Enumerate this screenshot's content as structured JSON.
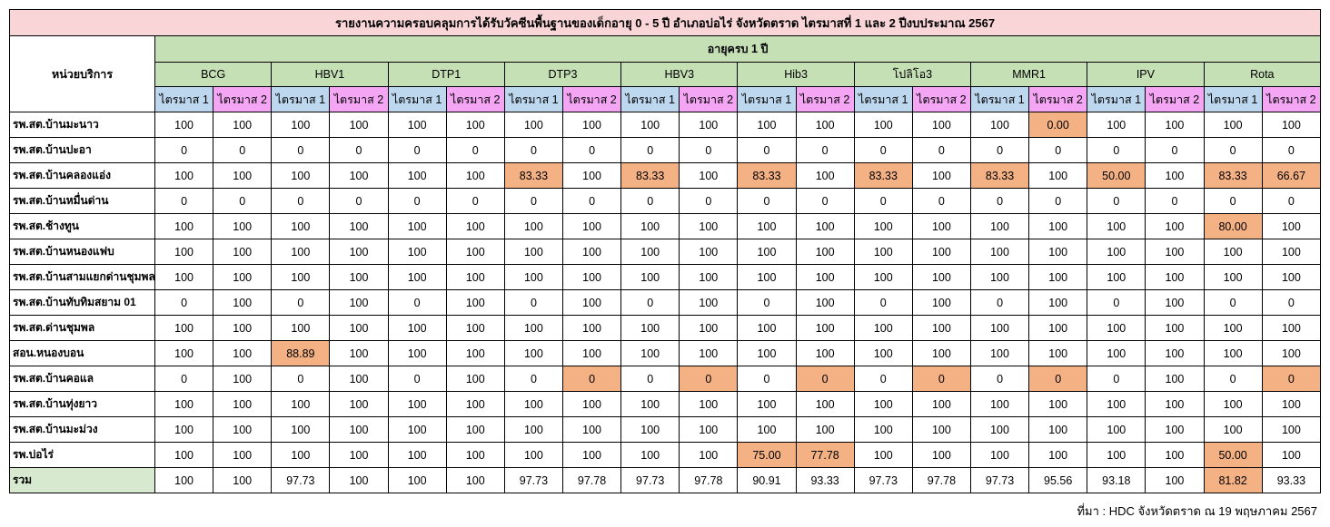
{
  "title": "รายงานความครอบคลุมการได้รับวัคซีนพื้นฐานของเด็กอายุ 0 - 5 ปี อำเภอบ่อไร่ จังหวัดตราด ไตรมาสที่ 1 และ 2 ปีงบประมาณ 2567",
  "unit_header": "หน่วยบริการ",
  "age_group": "อายุครบ 1 ปี",
  "vaccines": [
    "BCG",
    "HBV1",
    "DTP1",
    "DTP3",
    "HBV3",
    "Hib3",
    "โปลิโอ3",
    "MMR1",
    "IPV",
    "Rota"
  ],
  "quarter_labels": [
    "ไตรมาส 1",
    "ไตรมาส 2"
  ],
  "highlight_color": "#f4b183",
  "rows": [
    {
      "name": "รพ.สต.บ้านมะนาว",
      "values": [
        "100",
        "100",
        "100",
        "100",
        "100",
        "100",
        "100",
        "100",
        "100",
        "100",
        "100",
        "100",
        "100",
        "100",
        "100",
        "0.00",
        "100",
        "100",
        "100",
        "100"
      ],
      "hl": [
        15
      ]
    },
    {
      "name": "รพ.สต.บ้านปะอา",
      "values": [
        "0",
        "0",
        "0",
        "0",
        "0",
        "0",
        "0",
        "0",
        "0",
        "0",
        "0",
        "0",
        "0",
        "0",
        "0",
        "0",
        "0",
        "0",
        "0",
        "0"
      ],
      "hl": []
    },
    {
      "name": "รพ.สต.บ้านคลองแอ่ง",
      "values": [
        "100",
        "100",
        "100",
        "100",
        "100",
        "100",
        "83.33",
        "100",
        "83.33",
        "100",
        "83.33",
        "100",
        "83.33",
        "100",
        "83.33",
        "100",
        "50.00",
        "100",
        "83.33",
        "66.67"
      ],
      "hl": [
        6,
        8,
        10,
        12,
        14,
        16,
        18,
        19
      ]
    },
    {
      "name": "รพ.สต.บ้านหมื่นด่าน",
      "values": [
        "0",
        "0",
        "0",
        "0",
        "0",
        "0",
        "0",
        "0",
        "0",
        "0",
        "0",
        "0",
        "0",
        "0",
        "0",
        "0",
        "0",
        "0",
        "0",
        "0"
      ],
      "hl": []
    },
    {
      "name": "รพ.สต.ช้างทูน",
      "values": [
        "100",
        "100",
        "100",
        "100",
        "100",
        "100",
        "100",
        "100",
        "100",
        "100",
        "100",
        "100",
        "100",
        "100",
        "100",
        "100",
        "100",
        "100",
        "80.00",
        "100"
      ],
      "hl": [
        18
      ]
    },
    {
      "name": "รพ.สต.บ้านหนองแฟบ",
      "values": [
        "100",
        "100",
        "100",
        "100",
        "100",
        "100",
        "100",
        "100",
        "100",
        "100",
        "100",
        "100",
        "100",
        "100",
        "100",
        "100",
        "100",
        "100",
        "100",
        "100"
      ],
      "hl": []
    },
    {
      "name": "รพ.สต.บ้านสามแยกด่านชุมพล",
      "values": [
        "100",
        "100",
        "100",
        "100",
        "100",
        "100",
        "100",
        "100",
        "100",
        "100",
        "100",
        "100",
        "100",
        "100",
        "100",
        "100",
        "100",
        "100",
        "100",
        "100"
      ],
      "hl": []
    },
    {
      "name": "รพ.สต.บ้านทับทิมสยาม 01",
      "values": [
        "0",
        "100",
        "0",
        "100",
        "0",
        "100",
        "0",
        "100",
        "0",
        "100",
        "0",
        "100",
        "0",
        "100",
        "0",
        "100",
        "0",
        "100",
        "0",
        "0"
      ],
      "hl": []
    },
    {
      "name": "รพ.สต.ด่านชุมพล",
      "values": [
        "100",
        "100",
        "100",
        "100",
        "100",
        "100",
        "100",
        "100",
        "100",
        "100",
        "100",
        "100",
        "100",
        "100",
        "100",
        "100",
        "100",
        "100",
        "100",
        "100"
      ],
      "hl": []
    },
    {
      "name": "สอน.หนองบอน",
      "values": [
        "100",
        "100",
        "88.89",
        "100",
        "100",
        "100",
        "100",
        "100",
        "100",
        "100",
        "100",
        "100",
        "100",
        "100",
        "100",
        "100",
        "100",
        "100",
        "100",
        "100"
      ],
      "hl": [
        2
      ]
    },
    {
      "name": "รพ.สต.บ้านคอแล",
      "values": [
        "0",
        "100",
        "0",
        "100",
        "0",
        "100",
        "0",
        "0",
        "0",
        "0",
        "0",
        "0",
        "0",
        "0",
        "0",
        "0",
        "0",
        "100",
        "0",
        "0"
      ],
      "hl": [
        7,
        9,
        11,
        13,
        15,
        19
      ]
    },
    {
      "name": "รพ.สต.บ้านทุ่งยาว",
      "values": [
        "100",
        "100",
        "100",
        "100",
        "100",
        "100",
        "100",
        "100",
        "100",
        "100",
        "100",
        "100",
        "100",
        "100",
        "100",
        "100",
        "100",
        "100",
        "100",
        "100"
      ],
      "hl": []
    },
    {
      "name": "รพ.สต.บ้านมะม่วง",
      "values": [
        "100",
        "100",
        "100",
        "100",
        "100",
        "100",
        "100",
        "100",
        "100",
        "100",
        "100",
        "100",
        "100",
        "100",
        "100",
        "100",
        "100",
        "100",
        "100",
        "100"
      ],
      "hl": []
    },
    {
      "name": "รพ.บ่อไร่",
      "values": [
        "100",
        "100",
        "100",
        "100",
        "100",
        "100",
        "100",
        "100",
        "100",
        "100",
        "75.00",
        "77.78",
        "100",
        "100",
        "100",
        "100",
        "100",
        "100",
        "50.00",
        "100"
      ],
      "hl": [
        10,
        11,
        18
      ]
    }
  ],
  "total": {
    "name": "รวม",
    "values": [
      "100",
      "100",
      "97.73",
      "100",
      "100",
      "100",
      "97.73",
      "97.78",
      "97.73",
      "97.78",
      "90.91",
      "93.33",
      "97.73",
      "97.78",
      "97.73",
      "95.56",
      "93.18",
      "100",
      "81.82",
      "93.33"
    ],
    "hl": [
      18
    ]
  },
  "source": "ที่มา : HDC จังหวัดตราด ณ 19 พฤษภาคม 2567"
}
